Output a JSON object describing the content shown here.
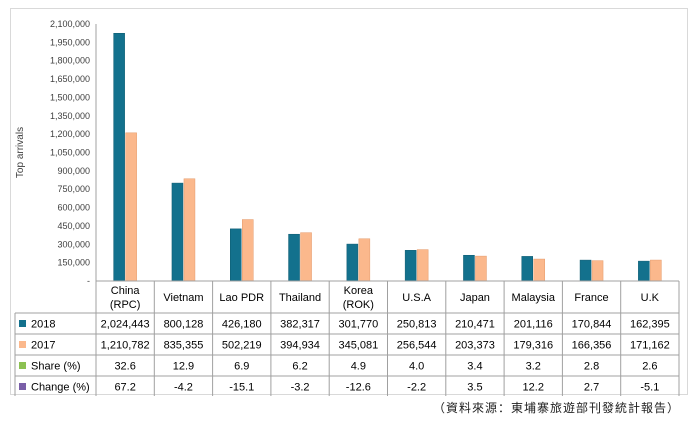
{
  "source_note": "（資料來源：東埔寨旅遊部刊發統計報告）",
  "chart_data": {
    "type": "bar",
    "ylabel": "Top arrivals",
    "ylim": [
      0,
      2100000
    ],
    "ytick_step": 150000,
    "ytick_labels": [
      "-",
      "150,000",
      "300,000",
      "450,000",
      "600,000",
      "750,000",
      "900,000",
      "1,050,000",
      "1,200,000",
      "1,350,000",
      "1,500,000",
      "1,650,000",
      "1,800,000",
      "1,950,000",
      "2,100,000"
    ],
    "categories": [
      [
        "China",
        "(RPC)"
      ],
      [
        "Vietnam"
      ],
      [
        "Lao PDR"
      ],
      [
        "Thailand"
      ],
      [
        "Korea",
        "(ROK)"
      ],
      [
        "U.S.A"
      ],
      [
        "Japan"
      ],
      [
        "Malaysia"
      ],
      [
        "France"
      ],
      [
        "U.K"
      ]
    ],
    "series": [
      {
        "name": "2018",
        "color": "#13718d",
        "values": [
          2024443,
          800128,
          426180,
          382317,
          301770,
          250813,
          210471,
          201116,
          170844,
          162395
        ]
      },
      {
        "name": "2017",
        "color": "#fbb88c",
        "values": [
          1210782,
          835355,
          502219,
          394934,
          345081,
          256544,
          203373,
          179316,
          166356,
          171162
        ]
      }
    ],
    "table_rows": [
      {
        "key": "2018",
        "label": "2018",
        "color": "#13718d",
        "cells": [
          "2,024,443",
          "800,128",
          "426,180",
          "382,317",
          "301,770",
          "250,813",
          "210,471",
          "201,116",
          "170,844",
          "162,395"
        ]
      },
      {
        "key": "2017",
        "label": "2017",
        "color": "#fbb88c",
        "cells": [
          "1,210,782",
          "835,355",
          "502,219",
          "394,934",
          "345,081",
          "256,544",
          "203,373",
          "179,316",
          "166,356",
          "171,162"
        ]
      },
      {
        "key": "share",
        "label": "Share (%)",
        "color": "#8cc152",
        "cells": [
          "32.6",
          "12.9",
          "6.9",
          "6.2",
          "4.9",
          "4.0",
          "3.4",
          "3.2",
          "2.8",
          "2.6"
        ]
      },
      {
        "key": "change",
        "label": "Change (%)",
        "color": "#7a5fa8",
        "cells": [
          "67.2",
          "-4.2",
          "-15.1",
          "-3.2",
          "-12.6",
          "-2.2",
          "3.5",
          "12.2",
          "2.7",
          "-5.1"
        ]
      }
    ]
  }
}
